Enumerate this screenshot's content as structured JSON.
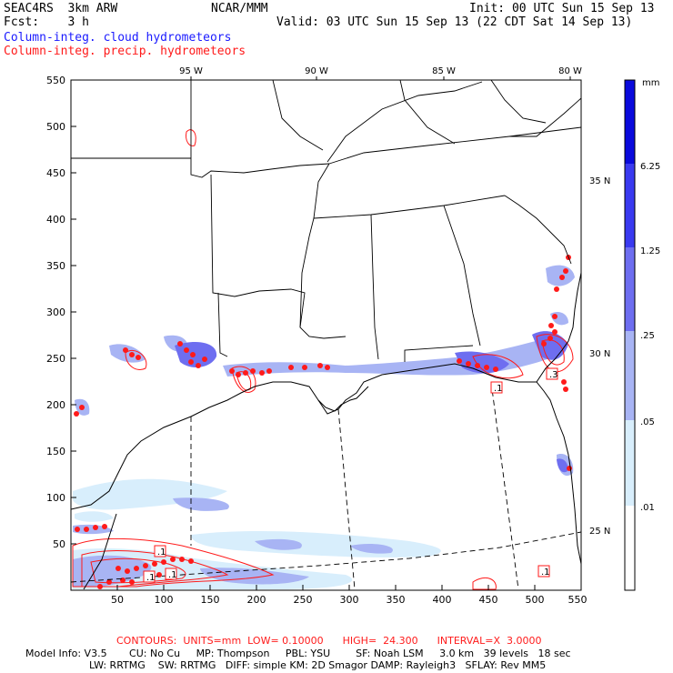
{
  "header": {
    "model": "SEAC4RS  3km ARW",
    "center": "NCAR/MMM",
    "init": "Init: 00 UTC Sun 15 Sep 13",
    "fcst": "Fcst:    3 h",
    "valid": "Valid: 03 UTC Sun 15 Sep 13 (22 CDT Sat 14 Sep 13)",
    "field1": "Column-integ. cloud hydrometeors",
    "field2": "Column-integ. precip. hydrometeors"
  },
  "axes": {
    "x_ticks": [
      "50",
      "100",
      "150",
      "200",
      "250",
      "300",
      "350",
      "400",
      "450",
      "500",
      "550"
    ],
    "y_ticks": [
      "550",
      "500",
      "450",
      "400",
      "350",
      "300",
      "250",
      "200",
      "150",
      "100",
      "50"
    ],
    "lon_labels": [
      "95 W",
      "90 W",
      "85 W",
      "80 W"
    ],
    "lat_labels": [
      "35 N",
      "30 N",
      "25 N"
    ]
  },
  "colorbar": {
    "unit": "mm",
    "labels": [
      "6.25",
      "1.25",
      ".25",
      ".05",
      ".01"
    ],
    "colors": [
      "#0a0adc",
      "#3a3af0",
      "#6e6ef0",
      "#a8b4f4",
      "#d8eefc",
      "#ffffff"
    ]
  },
  "contour_labels": [
    ".1",
    ".1",
    ".1",
    ".3",
    ".1"
  ],
  "footer": {
    "contours": "CONTOURS:  UNITS=mm  LOW= 0.10000      HIGH=  24.300      INTERVAL=X  3.0000",
    "line1": "Model Info: V3.5       CU: No Cu     MP: Thompson     PBL: YSU        SF: Noah LSM     3.0 km   39 levels   18 sec",
    "line2": "LW: RRTMG    SW: RRTMG   DIFF: simple KM: 2D Smagor DAMP: Rayleigh3   SFLAY: Rev MM5"
  }
}
